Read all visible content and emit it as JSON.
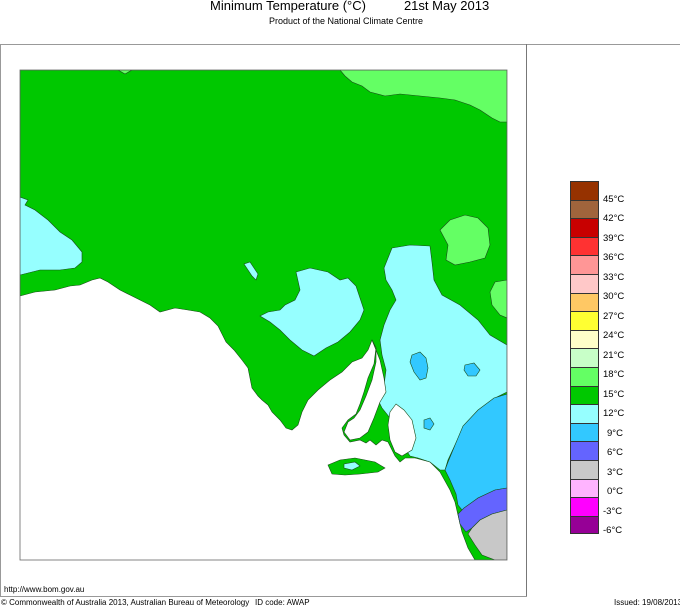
{
  "header": {
    "title": "Minimum Temperature (°C)",
    "date": "21st May 2013",
    "subtitle": "Product of the National Climate Centre"
  },
  "map": {
    "region": "South Australia",
    "variable": "Minimum Temperature",
    "units": "°C",
    "colors": {
      "c12_15": "#00c800",
      "c15_18": "#64ff64",
      "c9_12": "#96ffff",
      "c6_9": "#32c8ff",
      "c3_6": "#6464ff",
      "c0_3": "#c8c8c8",
      "ocean": "#ffffff"
    }
  },
  "legend": {
    "items": [
      {
        "label": "45°C",
        "color": "#963200"
      },
      {
        "label": "42°C",
        "color": "#a0643c"
      },
      {
        "label": "39°C",
        "color": "#c80000"
      },
      {
        "label": "36°C",
        "color": "#ff3232"
      },
      {
        "label": "33°C",
        "color": "#ff9696"
      },
      {
        "label": "30°C",
        "color": "#ffc8c8"
      },
      {
        "label": "27°C",
        "color": "#ffc864"
      },
      {
        "label": "24°C",
        "color": "#ffff32"
      },
      {
        "label": "21°C",
        "color": "#ffffc8"
      },
      {
        "label": "18°C",
        "color": "#c8ffc8"
      },
      {
        "label": "15°C",
        "color": "#64ff64"
      },
      {
        "label": "12°C",
        "color": "#00c800"
      },
      {
        "label": "9°C",
        "color": "#96ffff"
      },
      {
        "label": "6°C",
        "color": "#32c8ff"
      },
      {
        "label": "3°C",
        "color": "#6464ff"
      },
      {
        "label": "0°C",
        "color": "#c8c8c8"
      },
      {
        "label": "-3°C",
        "color": "#ffb4ff"
      },
      {
        "label": "-6°C",
        "color": "#ff00ff"
      },
      {
        "label": "",
        "color": "#960096"
      }
    ]
  },
  "footer": {
    "url": "http://www.bom.gov.au",
    "copyright": "© Commonwealth of Australia 2013, Australian Bureau of Meteorology",
    "id_code": "ID code: AWAP",
    "issued": "Issued: 19/08/2013"
  }
}
